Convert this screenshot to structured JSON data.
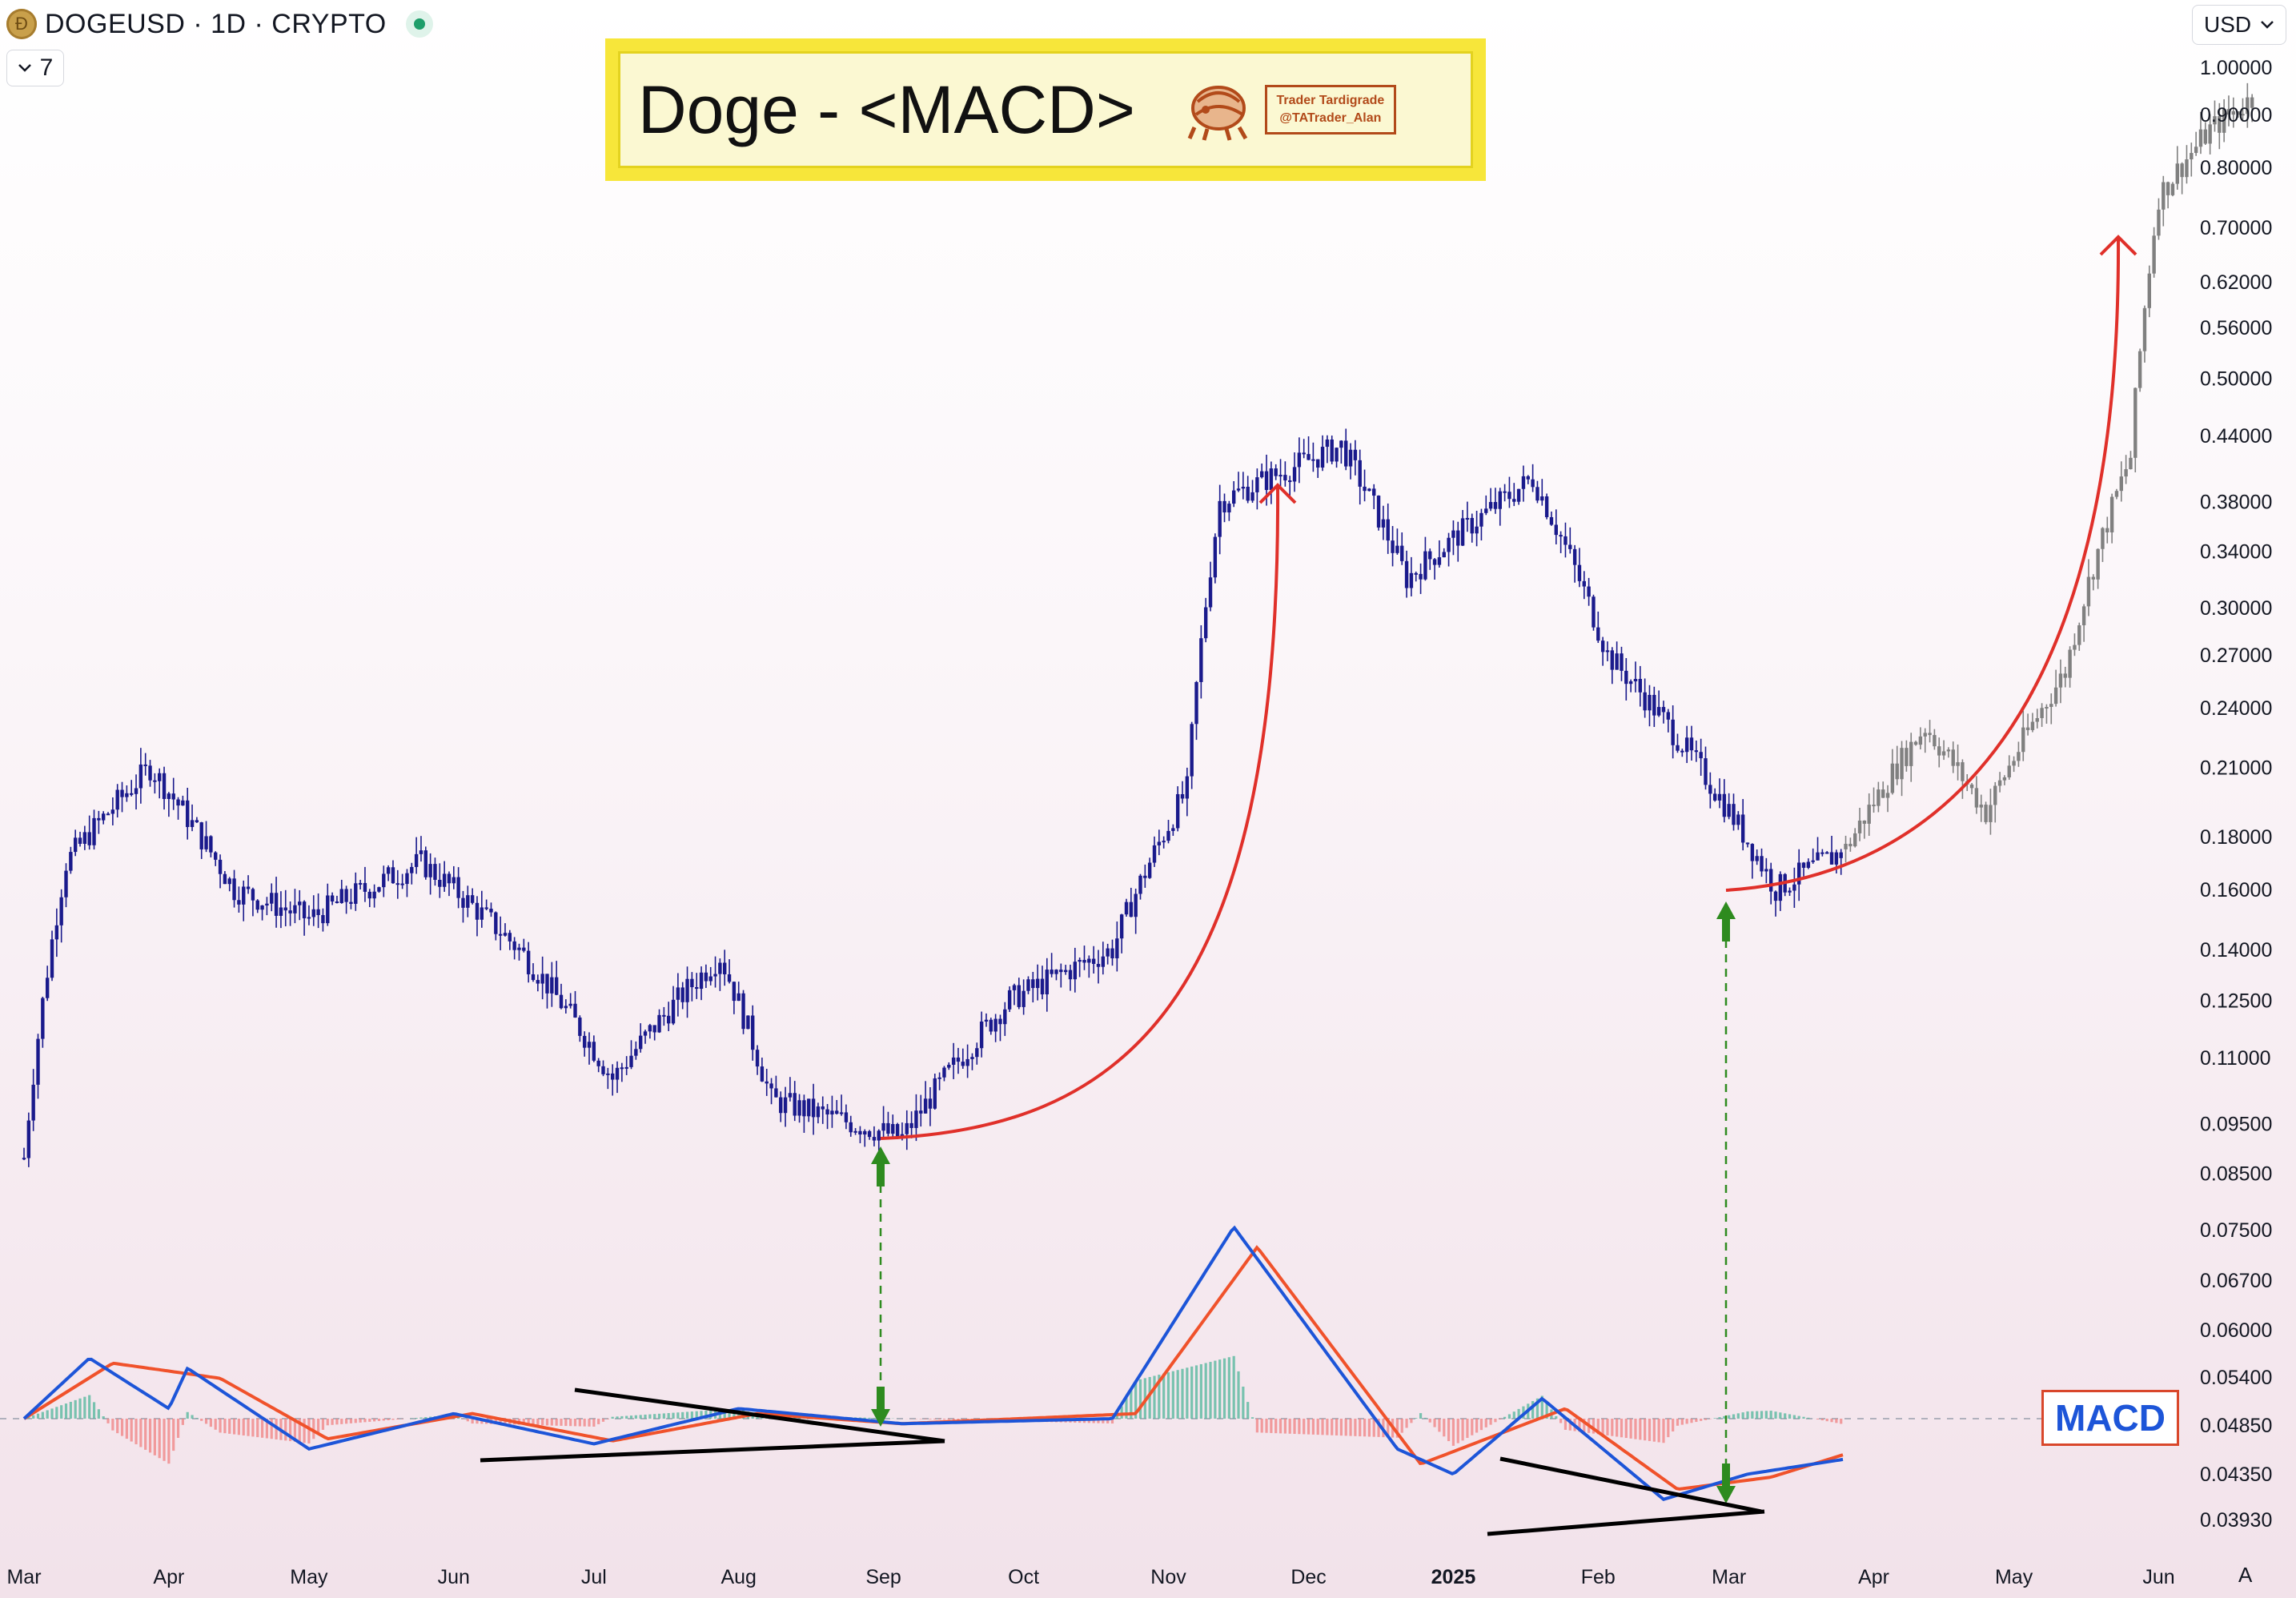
{
  "header": {
    "symbol": "DOGEUSD · 1D · CRYPTO",
    "logo_icon": "doge-coin-icon",
    "status_icon": "live-status-dot-icon"
  },
  "indicator_count": {
    "label": "7",
    "icon": "chevron-down-icon"
  },
  "currency": {
    "label": "USD",
    "icon": "chevron-down-icon"
  },
  "title_banner": {
    "text": "Doge - <MACD>",
    "brand_line1": "Trader Tardigrade",
    "brand_line2": "@TATrader_Alan",
    "brand_icon": "tardigrade-icon"
  },
  "macd_badge": "MACD",
  "auto_scale_label": "A",
  "colors": {
    "price_candles": "#1a1a8c",
    "projection_candles": "#808080",
    "macd_line": "#1d55d8",
    "signal_line": "#f0522b",
    "histogram_positive": "#4fb59a",
    "histogram_negative": "#f08080",
    "curve_arrows": "#e0302a",
    "vertical_markers": "#2e8b1f",
    "title_banner": "#f7e63a"
  },
  "chart_data": [
    {
      "type": "candlestick",
      "title": "",
      "y_scale": "log",
      "ylim": [
        0.0365,
        1.02
      ],
      "y_ticks": [
        "1.00000",
        "0.90000",
        "0.80000",
        "0.70000",
        "0.62000",
        "0.56000",
        "0.50000",
        "0.44000",
        "0.38000",
        "0.34000",
        "0.30000",
        "0.27000",
        "0.24000",
        "0.21000",
        "0.18000",
        "0.16000",
        "0.14000",
        "0.12500",
        "0.11000",
        "0.09500",
        "0.08500",
        "0.07500",
        "0.06700",
        "0.06000",
        "0.05400",
        "0.04850",
        "0.04350",
        "0.03930"
      ],
      "x_ticks": [
        "Mar",
        "Apr",
        "May",
        "Jun",
        "Jul",
        "Aug",
        "Sep",
        "Oct",
        "Nov",
        "Dec",
        "2025",
        "Feb",
        "Mar",
        "Apr",
        "May",
        "Jun"
      ],
      "series": [
        {
          "style": "candles",
          "approx_closes": [
            {
              "x": "2024-03-01",
              "y": 0.088
            },
            {
              "x": "2024-03-10",
              "y": 0.17
            },
            {
              "x": "2024-03-28",
              "y": 0.21
            },
            {
              "x": "2024-04-15",
              "y": 0.16
            },
            {
              "x": "2024-05-01",
              "y": 0.15
            },
            {
              "x": "2024-05-25",
              "y": 0.17
            },
            {
              "x": "2024-06-15",
              "y": 0.14
            },
            {
              "x": "2024-07-05",
              "y": 0.105
            },
            {
              "x": "2024-07-28",
              "y": 0.138
            },
            {
              "x": "2024-08-08",
              "y": 0.1
            },
            {
              "x": "2024-09-05",
              "y": 0.092
            },
            {
              "x": "2024-09-28",
              "y": 0.125
            },
            {
              "x": "2024-10-20",
              "y": 0.14
            },
            {
              "x": "2024-11-05",
              "y": 0.2
            },
            {
              "x": "2024-11-12",
              "y": 0.38
            },
            {
              "x": "2024-12-08",
              "y": 0.43
            },
            {
              "x": "2024-12-22",
              "y": 0.32
            },
            {
              "x": "2025-01-18",
              "y": 0.4
            },
            {
              "x": "2025-02-03",
              "y": 0.27
            },
            {
              "x": "2025-03-11",
              "y": 0.16
            },
            {
              "x": "2025-03-26",
              "y": 0.175
            }
          ]
        },
        {
          "style": "projection-candles",
          "approx_closes": [
            {
              "x": "2025-03-26",
              "y": 0.175
            },
            {
              "x": "2025-04-12",
              "y": 0.23
            },
            {
              "x": "2025-04-25",
              "y": 0.19
            },
            {
              "x": "2025-05-12",
              "y": 0.26
            },
            {
              "x": "2025-05-26",
              "y": 0.42
            },
            {
              "x": "2025-06-01",
              "y": 0.75
            },
            {
              "x": "2025-06-12",
              "y": 0.87
            },
            {
              "x": "2025-06-22",
              "y": 0.94
            }
          ]
        }
      ]
    },
    {
      "type": "line",
      "title": "",
      "series": [
        {
          "name": "MACD",
          "approx_values": [
            {
              "x": "2024-03-01",
              "y": 0.0
            },
            {
              "x": "2024-03-15",
              "y": 0.6
            },
            {
              "x": "2024-04-01",
              "y": 0.1
            },
            {
              "x": "2024-04-05",
              "y": 0.5
            },
            {
              "x": "2024-05-01",
              "y": -0.3
            },
            {
              "x": "2024-06-01",
              "y": 0.05
            },
            {
              "x": "2024-07-01",
              "y": -0.25
            },
            {
              "x": "2024-08-01",
              "y": 0.1
            },
            {
              "x": "2024-09-05",
              "y": -0.05
            },
            {
              "x": "2024-10-20",
              "y": 0.0
            },
            {
              "x": "2024-11-15",
              "y": 1.9
            },
            {
              "x": "2024-12-20",
              "y": -0.3
            },
            {
              "x": "2025-01-01",
              "y": -0.55
            },
            {
              "x": "2025-01-20",
              "y": 0.2
            },
            {
              "x": "2025-02-15",
              "y": -0.8
            },
            {
              "x": "2025-03-05",
              "y": -0.55
            },
            {
              "x": "2025-03-26",
              "y": -0.4
            }
          ]
        },
        {
          "name": "Signal",
          "approx_values": [
            {
              "x": "2024-03-01",
              "y": 0.0
            },
            {
              "x": "2024-03-20",
              "y": 0.55
            },
            {
              "x": "2024-04-12",
              "y": 0.4
            },
            {
              "x": "2024-05-05",
              "y": -0.2
            },
            {
              "x": "2024-06-05",
              "y": 0.05
            },
            {
              "x": "2024-07-05",
              "y": -0.22
            },
            {
              "x": "2024-08-05",
              "y": 0.05
            },
            {
              "x": "2024-09-05",
              "y": -0.05
            },
            {
              "x": "2024-10-25",
              "y": 0.05
            },
            {
              "x": "2024-11-20",
              "y": 1.7
            },
            {
              "x": "2024-12-25",
              "y": -0.45
            },
            {
              "x": "2025-01-25",
              "y": 0.1
            },
            {
              "x": "2025-02-18",
              "y": -0.7
            },
            {
              "x": "2025-03-10",
              "y": -0.58
            },
            {
              "x": "2025-03-26",
              "y": -0.35
            }
          ]
        }
      ]
    }
  ]
}
